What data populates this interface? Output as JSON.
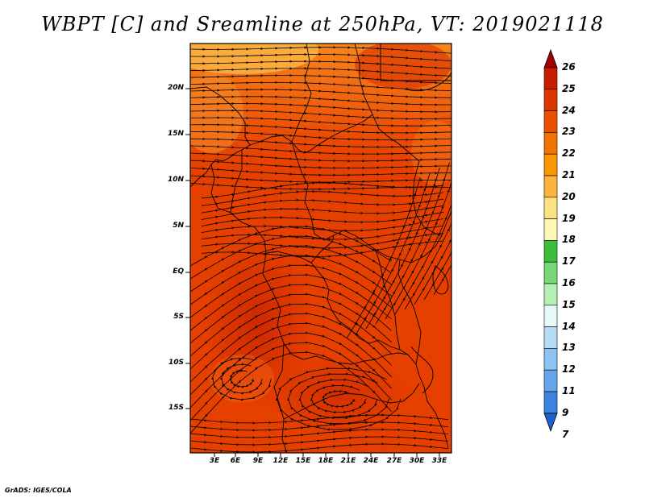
{
  "title": "WBPT [C] and Sreamline at 250hPa, VT: 2019021118",
  "footer": "GrADS: IGES/COLA",
  "lat_labels": [
    "20N",
    "15N",
    "10N",
    "5N",
    "EQ",
    "5S",
    "10S",
    "15S"
  ],
  "lon_labels": [
    "3E",
    "6E",
    "9E",
    "12E",
    "15E",
    "18E",
    "21E",
    "24E",
    "27E",
    "30E",
    "33E"
  ],
  "colorbar": {
    "labels": [
      "26",
      "25",
      "24",
      "23",
      "22",
      "21",
      "20",
      "19",
      "18",
      "17",
      "16",
      "15",
      "14",
      "13",
      "12",
      "11",
      "9",
      "7"
    ],
    "colors": [
      "#a50000",
      "#c81e00",
      "#dc3700",
      "#eb5000",
      "#f57300",
      "#fa9600",
      "#fcb43c",
      "#fde282",
      "#fef8b4",
      "#3cbe3c",
      "#78d778",
      "#b4f0b4",
      "#e6f8fa",
      "#b4dcf5",
      "#8cc3f0",
      "#64a5eb",
      "#3c82e1",
      "#1e5fd2"
    ]
  },
  "field_colors": {
    "base": "#e64000",
    "warm_core": "#cf2a00",
    "north_band": "#f06010",
    "northwest_edge": "#fbb040"
  }
}
